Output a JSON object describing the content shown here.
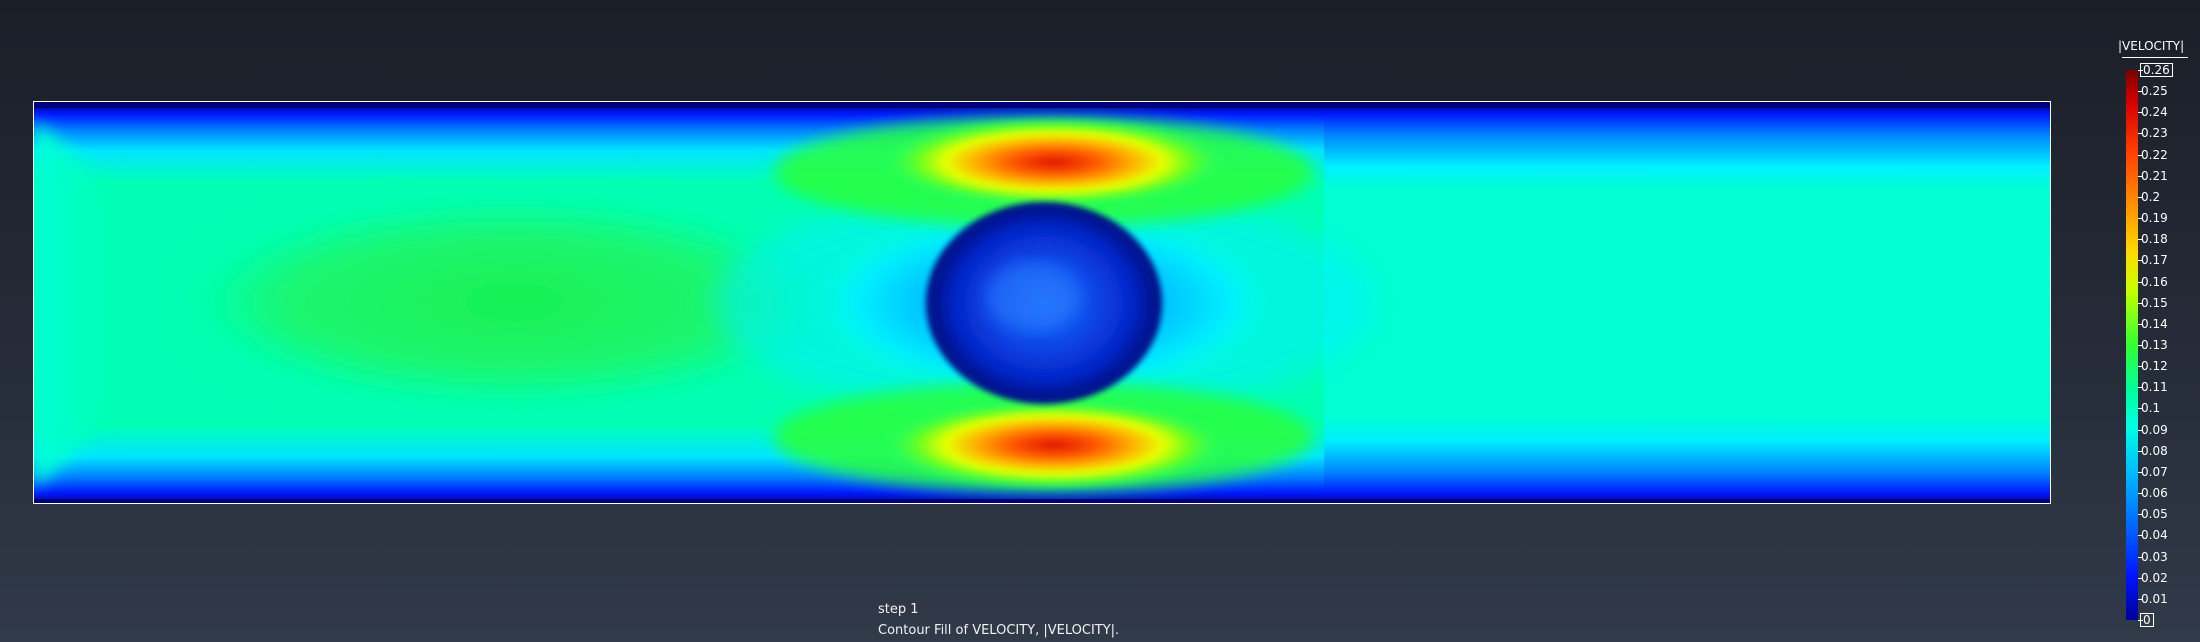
{
  "plot": {
    "step_text": "step 1",
    "description_text": "Contour Fill of VELOCITY, |VELOCITY|."
  },
  "legend": {
    "title": "|VELOCITY|",
    "max_label": "0.26",
    "min_label": "0",
    "ticks": [
      "0.25",
      "0.24",
      "0.23",
      "0.22",
      "0.21",
      "0.2",
      "0.19",
      "0.18",
      "0.17",
      "0.16",
      "0.15",
      "0.14",
      "0.13",
      "0.12",
      "0.11",
      "0.1",
      "0.09",
      "0.08",
      "0.07",
      "0.06",
      "0.05",
      "0.04",
      "0.03",
      "0.02",
      "0.01"
    ],
    "range": [
      0,
      0.26
    ]
  },
  "colors": {
    "wall": "#000a9c",
    "freestream": "#00ffd0",
    "inlet_core": "#10f468",
    "obstacle": "#0d3ed8",
    "peak": "#e21a00"
  }
}
